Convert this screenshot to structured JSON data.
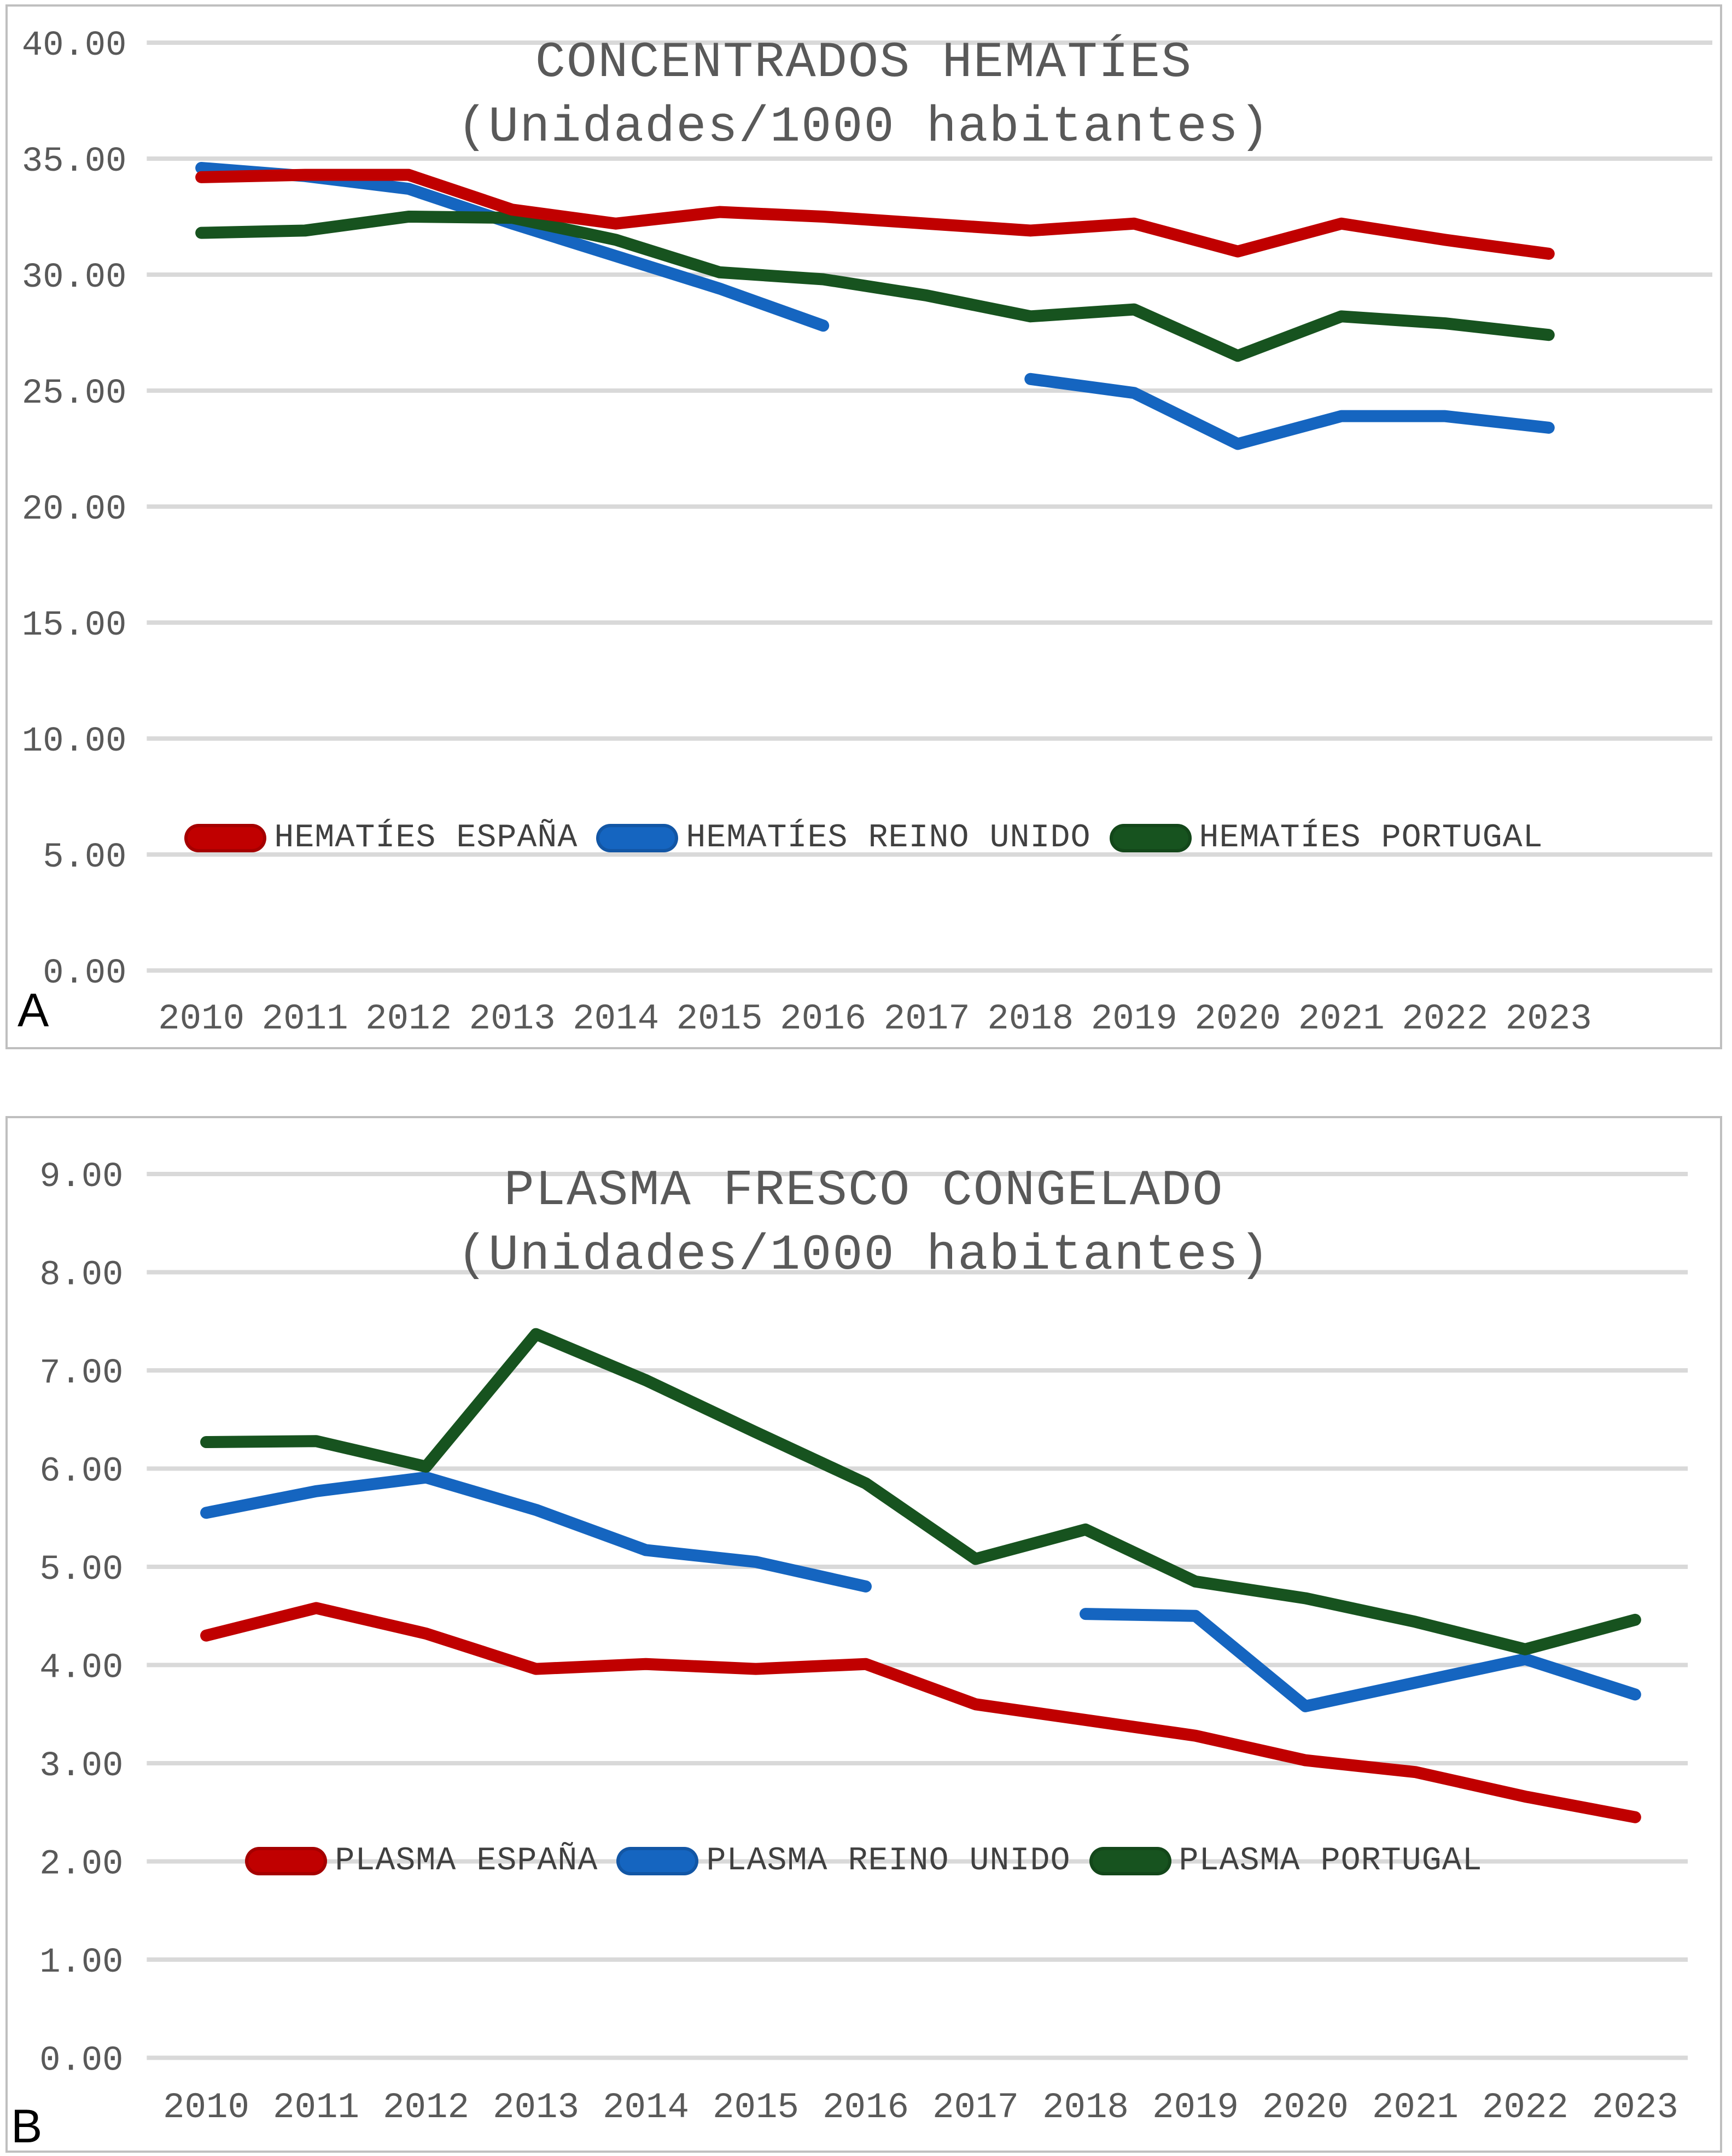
{
  "style": {
    "red": "#C00000",
    "blue": "#1565C0",
    "green": "#17531F",
    "grid": "#D9D9D9",
    "panel_border": "#BFBFBF",
    "axis_text": "#595959",
    "legend_text": "#404040",
    "panel_letter": "#000000"
  },
  "chart_data": [
    {
      "id": "chartA",
      "type": "line",
      "title": "CONCENTRADOS HEMATÍES",
      "subtitle": "(Unidades/1000 habitantes)",
      "panel_label": "A",
      "categories": [
        "2010",
        "2011",
        "2012",
        "2013",
        "2014",
        "2015",
        "2016",
        "2017",
        "2018",
        "2019",
        "2020",
        "2021",
        "2022",
        "2023"
      ],
      "ylim": [
        0,
        40
      ],
      "ytick_step": 5,
      "yticks": [
        "40.00",
        "35.00",
        "30.00",
        "25.00",
        "20.00",
        "15.00",
        "10.00",
        "5.00",
        "0.00"
      ],
      "grid": true,
      "legend_position": "inside-bottom",
      "series": [
        {
          "name": "HEMATÍES ESPAÑA",
          "color": "#C00000",
          "values": [
            34.2,
            34.3,
            34.3,
            32.8,
            32.2,
            32.7,
            32.5,
            32.2,
            31.9,
            32.2,
            31.0,
            32.2,
            31.5,
            30.9
          ]
        },
        {
          "name": "HEMATÍES REINO UNIDO",
          "color": "#1565C0",
          "values": [
            34.6,
            34.25,
            33.7,
            32.2,
            30.8,
            29.4,
            27.8,
            null,
            25.5,
            24.9,
            22.7,
            23.9,
            23.9,
            23.4
          ]
        },
        {
          "name": "HEMATÍES PORTUGAL",
          "color": "#17531F",
          "values": [
            31.8,
            31.9,
            32.5,
            32.45,
            31.5,
            30.1,
            29.8,
            29.1,
            28.2,
            28.5,
            26.5,
            28.2,
            27.9,
            27.4
          ]
        }
      ]
    },
    {
      "id": "chartB",
      "type": "line",
      "title": "PLASMA FRESCO CONGELADO",
      "subtitle": "(Unidades/1000 habitantes)",
      "panel_label": "B",
      "categories": [
        "2010",
        "2011",
        "2012",
        "2013",
        "2014",
        "2015",
        "2016",
        "2017",
        "2018",
        "2019",
        "2020",
        "2021",
        "2022",
        "2023"
      ],
      "ylim": [
        0,
        9
      ],
      "ytick_step": 1,
      "yticks": [
        "9.00",
        "8.00",
        "7.00",
        "6.00",
        "5.00",
        "4.00",
        "3.00",
        "2.00",
        "1.00",
        "0.00"
      ],
      "grid": true,
      "legend_position": "inside-bottom",
      "series": [
        {
          "name": "PLASMA ESPAÑA",
          "color": "#C00000",
          "values": [
            4.3,
            4.58,
            4.32,
            3.96,
            4.01,
            3.96,
            4.01,
            3.6,
            3.44,
            3.28,
            3.03,
            2.91,
            2.66,
            2.45
          ]
        },
        {
          "name": "PLASMA REINO UNIDO",
          "color": "#1565C0",
          "values": [
            5.55,
            5.77,
            5.91,
            5.58,
            5.17,
            5.05,
            4.8,
            null,
            4.52,
            4.5,
            3.58,
            3.82,
            4.06,
            3.7
          ]
        },
        {
          "name": "PLASMA PORTUGAL",
          "color": "#17531F",
          "values": [
            6.27,
            6.28,
            6.02,
            7.37,
            6.9,
            6.37,
            5.85,
            5.08,
            5.38,
            4.85,
            4.68,
            4.44,
            4.16,
            4.46
          ]
        }
      ]
    }
  ]
}
